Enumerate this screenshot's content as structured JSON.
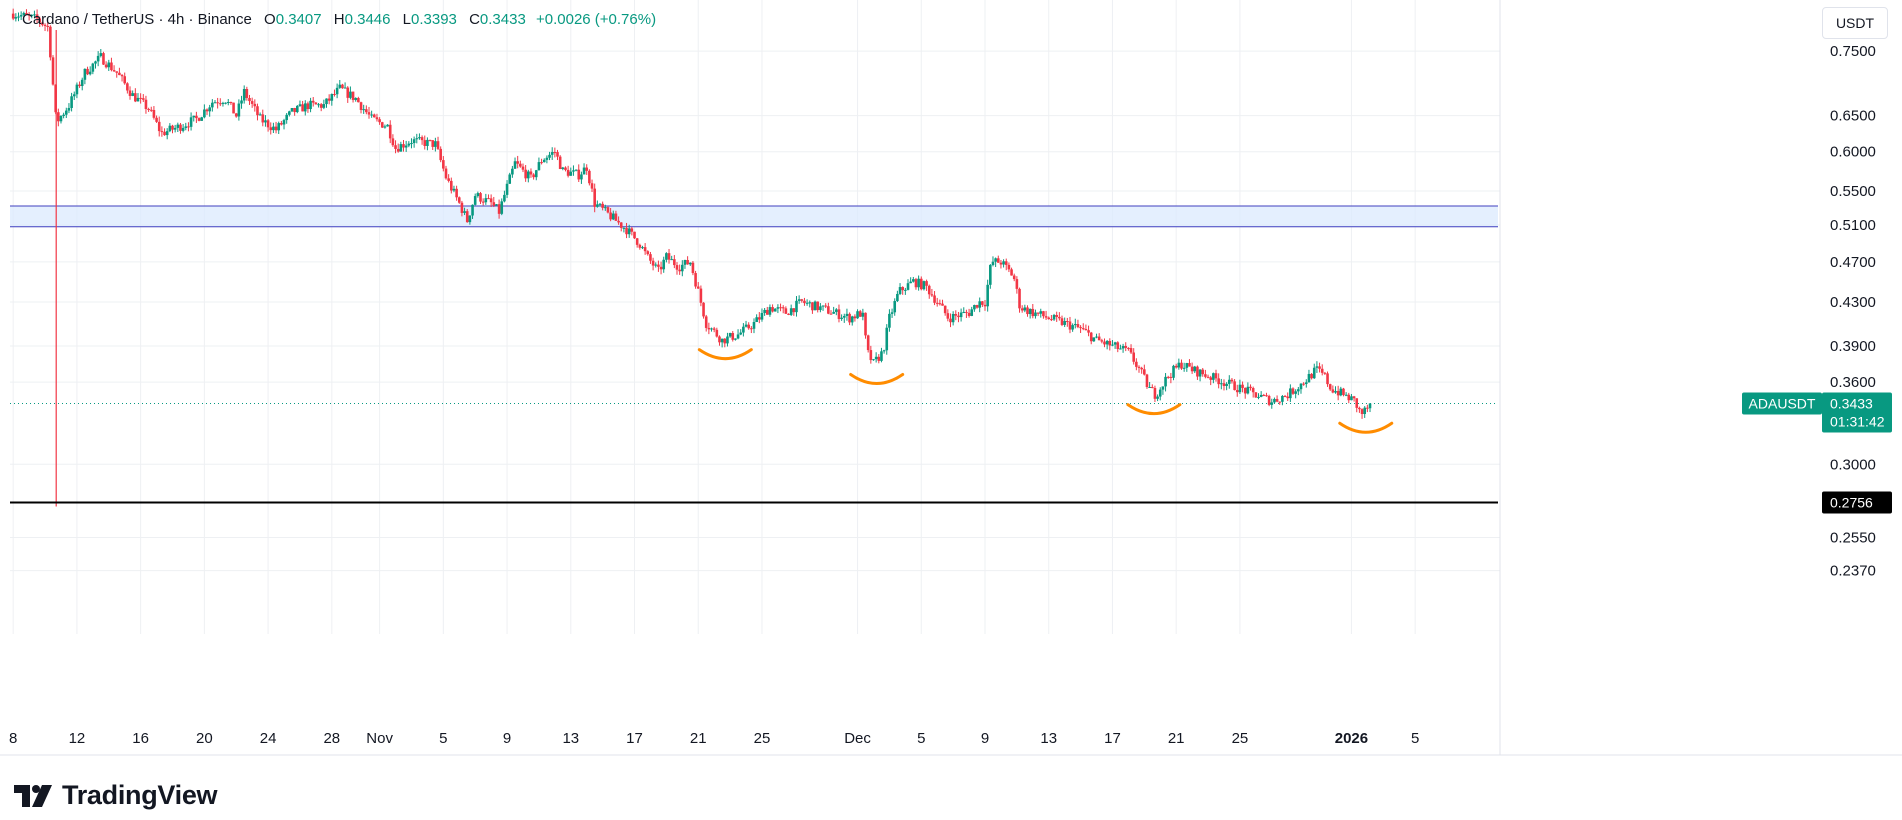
{
  "header": {
    "symbol": "Cardano / TetherUS · 4h · Binance",
    "o_label": "O",
    "o_value": "0.3407",
    "h_label": "H",
    "h_value": "0.3446",
    "l_label": "L",
    "l_value": "0.3393",
    "c_label": "C",
    "c_value": "0.3433",
    "change": "+0.0026 (+0.76%)"
  },
  "currency_button": "USDT",
  "brand": "TradingView",
  "colors": {
    "up": "#089981",
    "down": "#f23645",
    "zone_fill": "#dbeafe",
    "zone_line": "#3f3fbf",
    "support_line": "#000000",
    "highlight": "#ff8c00",
    "last_price": "#089981",
    "grid": "#eef0f3"
  },
  "chart_data": {
    "type": "candlestick",
    "symbol": "ADAUSDT",
    "interval": "4h",
    "scale": "log",
    "price_axis": {
      "ticks": [
        0.75,
        0.65,
        0.6,
        0.55,
        0.51,
        0.47,
        0.43,
        0.39,
        0.36,
        0.3,
        0.255,
        0.237
      ],
      "tick_labels": [
        "0.7500",
        "0.6500",
        "0.6000",
        "0.5500",
        "0.5100",
        "0.4700",
        "0.4300",
        "0.3900",
        "0.3600",
        "0.3000",
        "0.2550",
        "0.2370"
      ],
      "range": [
        0.225,
        0.84
      ]
    },
    "time_axis": {
      "labels": [
        "8",
        "12",
        "16",
        "20",
        "24",
        "28",
        "Nov",
        "5",
        "9",
        "13",
        "17",
        "21",
        "25",
        "Dec",
        "5",
        "9",
        "13",
        "17",
        "21",
        "25",
        "2026",
        "5"
      ],
      "bold_labels": [
        "2026"
      ],
      "range_days": [
        -23.2,
        70.2
      ],
      "label_days": [
        -23,
        -19,
        -15,
        -11,
        -7,
        -3,
        0,
        4,
        8,
        12,
        16,
        20,
        24,
        30,
        34,
        38,
        42,
        46,
        50,
        54,
        61,
        65
      ]
    },
    "price_path": [
      [
        -23.0,
        0.815
      ],
      [
        -21.5,
        0.805
      ],
      [
        -20.8,
        0.79
      ],
      [
        -20.3,
        0.64
      ],
      [
        -19.5,
        0.665
      ],
      [
        -18.5,
        0.715
      ],
      [
        -17.5,
        0.74
      ],
      [
        -16.5,
        0.715
      ],
      [
        -15.5,
        0.68
      ],
      [
        -14.5,
        0.66
      ],
      [
        -13.7,
        0.625
      ],
      [
        -12.5,
        0.635
      ],
      [
        -11.5,
        0.645
      ],
      [
        -10.5,
        0.67
      ],
      [
        -9.7,
        0.675
      ],
      [
        -9.0,
        0.65
      ],
      [
        -8.5,
        0.685
      ],
      [
        -7.5,
        0.645
      ],
      [
        -6.5,
        0.63
      ],
      [
        -5.5,
        0.655
      ],
      [
        -4.5,
        0.665
      ],
      [
        -3.5,
        0.665
      ],
      [
        -2.5,
        0.69
      ],
      [
        -1.5,
        0.675
      ],
      [
        -0.5,
        0.645
      ],
      [
        0.5,
        0.635
      ],
      [
        1.0,
        0.605
      ],
      [
        2.0,
        0.615
      ],
      [
        3.5,
        0.61
      ],
      [
        4.2,
        0.565
      ],
      [
        5.0,
        0.535
      ],
      [
        5.5,
        0.515
      ],
      [
        6.0,
        0.545
      ],
      [
        7.0,
        0.535
      ],
      [
        7.5,
        0.525
      ],
      [
        8.0,
        0.555
      ],
      [
        8.5,
        0.585
      ],
      [
        9.5,
        0.565
      ],
      [
        10.2,
        0.59
      ],
      [
        11.0,
        0.6
      ],
      [
        11.5,
        0.575
      ],
      [
        12.5,
        0.57
      ],
      [
        13.0,
        0.58
      ],
      [
        13.5,
        0.535
      ],
      [
        14.5,
        0.52
      ],
      [
        15.5,
        0.505
      ],
      [
        16.3,
        0.49
      ],
      [
        16.8,
        0.475
      ],
      [
        17.5,
        0.46
      ],
      [
        18.0,
        0.475
      ],
      [
        18.8,
        0.465
      ],
      [
        19.5,
        0.47
      ],
      [
        20.0,
        0.44
      ],
      [
        20.5,
        0.41
      ],
      [
        21.5,
        0.395
      ],
      [
        22.5,
        0.4
      ],
      [
        23.5,
        0.41
      ],
      [
        24.5,
        0.425
      ],
      [
        25.5,
        0.42
      ],
      [
        26.5,
        0.43
      ],
      [
        27.5,
        0.425
      ],
      [
        28.5,
        0.42
      ],
      [
        29.5,
        0.415
      ],
      [
        30.3,
        0.42
      ],
      [
        30.6,
        0.385
      ],
      [
        31.0,
        0.375
      ],
      [
        31.6,
        0.385
      ],
      [
        32.0,
        0.415
      ],
      [
        32.6,
        0.44
      ],
      [
        33.5,
        0.45
      ],
      [
        34.3,
        0.445
      ],
      [
        35.0,
        0.43
      ],
      [
        35.7,
        0.415
      ],
      [
        37.0,
        0.42
      ],
      [
        37.6,
        0.43
      ],
      [
        38.0,
        0.43
      ],
      [
        38.4,
        0.47
      ],
      [
        39.0,
        0.47
      ],
      [
        39.8,
        0.455
      ],
      [
        40.2,
        0.425
      ],
      [
        41.0,
        0.42
      ],
      [
        42.0,
        0.415
      ],
      [
        43.0,
        0.41
      ],
      [
        44.0,
        0.405
      ],
      [
        45.0,
        0.395
      ],
      [
        46.0,
        0.39
      ],
      [
        47.0,
        0.385
      ],
      [
        47.7,
        0.37
      ],
      [
        48.3,
        0.355
      ],
      [
        48.7,
        0.35
      ],
      [
        49.5,
        0.365
      ],
      [
        50.3,
        0.375
      ],
      [
        51.0,
        0.37
      ],
      [
        52.0,
        0.365
      ],
      [
        53.0,
        0.36
      ],
      [
        54.0,
        0.355
      ],
      [
        55.0,
        0.35
      ],
      [
        56.0,
        0.345
      ],
      [
        57.0,
        0.35
      ],
      [
        58.0,
        0.36
      ],
      [
        58.8,
        0.37
      ],
      [
        59.3,
        0.365
      ],
      [
        59.7,
        0.355
      ],
      [
        60.5,
        0.35
      ],
      [
        61.2,
        0.345
      ],
      [
        61.6,
        0.335
      ],
      [
        62.3,
        0.3433
      ]
    ],
    "zone": {
      "low": 0.508,
      "high": 0.532
    },
    "support": {
      "price": 0.2756,
      "label": "0.2756"
    },
    "last_price": {
      "price": 0.3433,
      "label_symbol": "ADAUSDT",
      "label_price": "0.3433",
      "countdown": "01:31:42"
    },
    "crosshair_day": -20.3,
    "highlighted_lows": [
      {
        "day": 21.7,
        "price": 0.392
      },
      {
        "day": 31.2,
        "price": 0.371
      },
      {
        "day": 48.6,
        "price": 0.347
      },
      {
        "day": 61.9,
        "price": 0.333
      }
    ]
  }
}
